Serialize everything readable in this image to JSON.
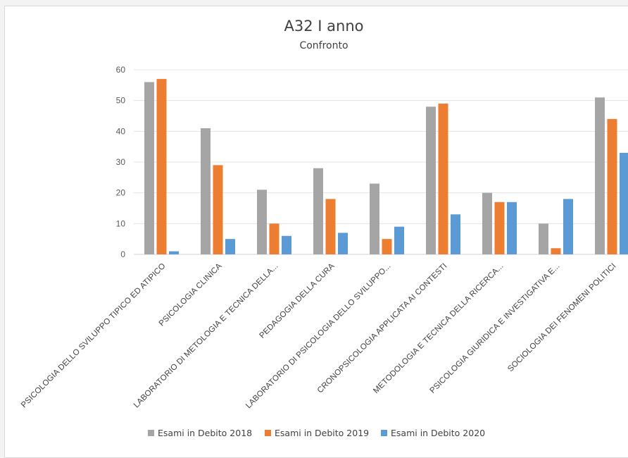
{
  "chart_data": {
    "type": "bar",
    "title": "A32 I anno",
    "subtitle": "Confronto",
    "xlabel": "",
    "ylabel": "",
    "ylim": [
      0,
      60
    ],
    "yticks": [
      0,
      10,
      20,
      30,
      40,
      50,
      60
    ],
    "grid": true,
    "legend_position": "bottom",
    "categories": [
      "PSICOLOGIA DELLO SVILUPPO TIPICO ED ATIPICO",
      "PSICOLOGIA CLINICA",
      "LABORATORIO DI METOLOGIA E TECNICA DELLA...",
      "PEDAGOGIA DELLA CURA",
      "LABORATORIO DI PSICOLOGIA DELLO SVILUPPO...",
      "CRONOPSICOLOGIA APPLICATA AI CONTESTI",
      "METODOLOGIA E TECNICA DELLA RICERCA...",
      "PSICOLOGIA GIURIDICA E INVESTIGATIVA E...",
      "SOCIOLOGIA DEI FENOMENI POLITICI"
    ],
    "series": [
      {
        "name": "Esami in Debito 2018",
        "color": "#a5a5a5",
        "values": [
          56,
          41,
          21,
          28,
          23,
          48,
          20,
          10,
          51
        ]
      },
      {
        "name": "Esami in Debito 2019",
        "color": "#ed7d31",
        "values": [
          57,
          29,
          10,
          18,
          5,
          49,
          17,
          2,
          44
        ]
      },
      {
        "name": "Esami in Debito 2020",
        "color": "#5b9bd5",
        "values": [
          1,
          5,
          6,
          7,
          9,
          13,
          17,
          18,
          33
        ]
      }
    ]
  }
}
